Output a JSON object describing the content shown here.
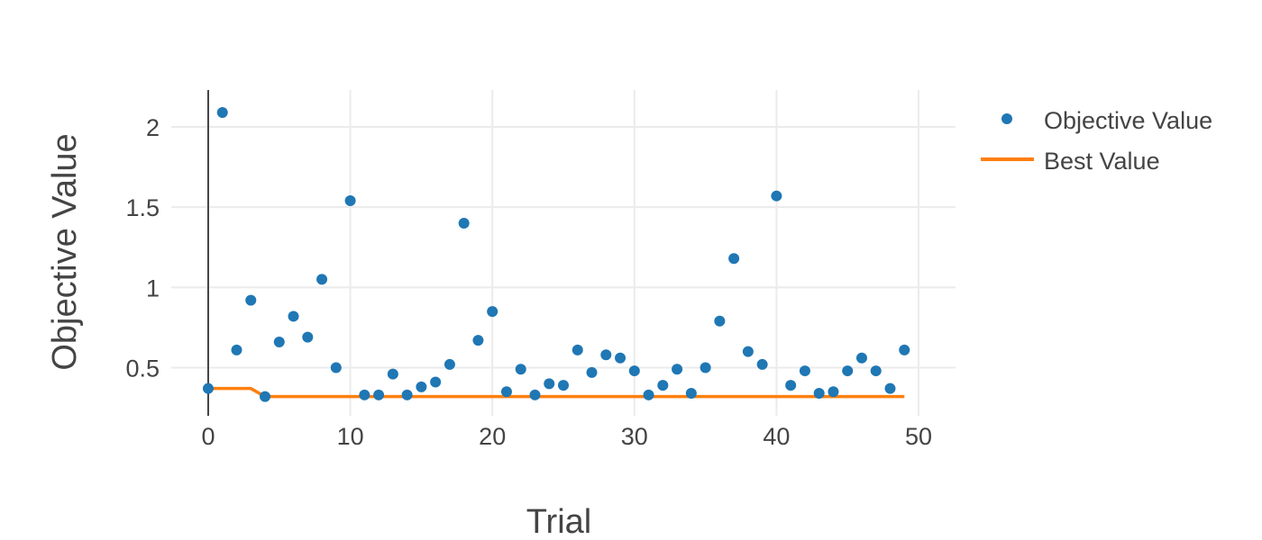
{
  "chart_data": {
    "type": "scatter",
    "title": "",
    "xlabel": "Trial",
    "ylabel": "Objective Value",
    "xlim": [
      -2.6,
      52.6
    ],
    "ylim": [
      0.2,
      2.23
    ],
    "x_ticks": [
      0,
      10,
      20,
      30,
      40,
      50
    ],
    "y_ticks": [
      0.5,
      1,
      1.5,
      2
    ],
    "y_tick_labels": [
      "0.5",
      "1",
      "1.5",
      "2"
    ],
    "grid": true,
    "legend_position": "top-right",
    "series": [
      {
        "name": "Objective Value",
        "mode": "markers",
        "color": "#1f77b4",
        "x": [
          0,
          1,
          2,
          3,
          4,
          5,
          6,
          7,
          8,
          9,
          10,
          11,
          12,
          13,
          14,
          15,
          16,
          17,
          18,
          19,
          20,
          21,
          22,
          23,
          24,
          25,
          26,
          27,
          28,
          29,
          30,
          31,
          32,
          33,
          34,
          35,
          36,
          37,
          38,
          39,
          40,
          41,
          42,
          43,
          44,
          45,
          46,
          47,
          48,
          49
        ],
        "values": [
          0.37,
          2.09,
          0.61,
          0.92,
          0.32,
          0.66,
          0.82,
          0.69,
          1.05,
          0.5,
          1.54,
          0.33,
          0.33,
          0.46,
          0.33,
          0.38,
          0.41,
          0.52,
          1.4,
          0.67,
          0.85,
          0.35,
          0.49,
          0.33,
          0.4,
          0.39,
          0.61,
          0.47,
          0.58,
          0.56,
          0.48,
          0.33,
          0.39,
          0.49,
          0.34,
          0.5,
          0.79,
          1.18,
          0.6,
          0.52,
          1.57,
          0.39,
          0.48,
          0.34,
          0.35,
          0.48,
          0.56,
          0.48,
          0.37,
          0.61
        ]
      },
      {
        "name": "Best Value",
        "mode": "lines",
        "color": "#ff7f0e",
        "x": [
          0,
          1,
          2,
          3,
          4,
          5,
          6,
          7,
          8,
          9,
          10,
          11,
          12,
          13,
          14,
          15,
          16,
          17,
          18,
          19,
          20,
          21,
          22,
          23,
          24,
          25,
          26,
          27,
          28,
          29,
          30,
          31,
          32,
          33,
          34,
          35,
          36,
          37,
          38,
          39,
          40,
          41,
          42,
          43,
          44,
          45,
          46,
          47,
          48,
          49
        ],
        "values": [
          0.37,
          0.37,
          0.37,
          0.37,
          0.32,
          0.32,
          0.32,
          0.32,
          0.32,
          0.32,
          0.32,
          0.32,
          0.32,
          0.32,
          0.32,
          0.32,
          0.32,
          0.32,
          0.32,
          0.32,
          0.32,
          0.32,
          0.32,
          0.32,
          0.32,
          0.32,
          0.32,
          0.32,
          0.32,
          0.32,
          0.32,
          0.32,
          0.32,
          0.32,
          0.32,
          0.32,
          0.32,
          0.32,
          0.32,
          0.32,
          0.32,
          0.32,
          0.32,
          0.32,
          0.32,
          0.32,
          0.32,
          0.32,
          0.32,
          0.32
        ]
      }
    ]
  }
}
